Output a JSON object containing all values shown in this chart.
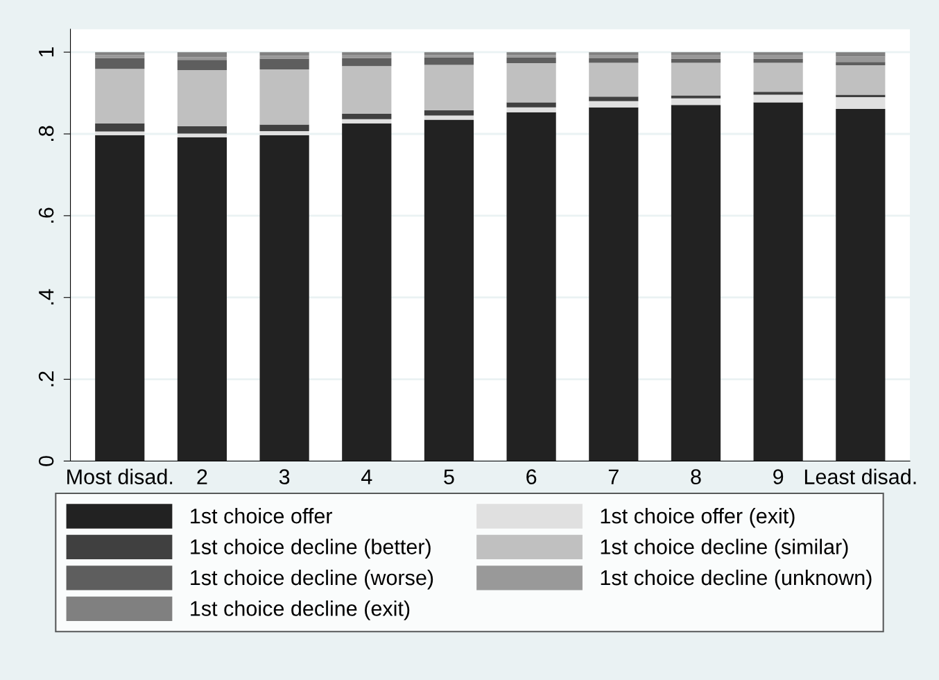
{
  "chart_data": {
    "type": "bar",
    "stacked": true,
    "categories": [
      "Most disad.",
      "2",
      "3",
      "4",
      "5",
      "6",
      "7",
      "8",
      "9",
      "Least disad."
    ],
    "series": [
      {
        "name": "1st choice offer",
        "color": "#222222",
        "values": [
          0.797,
          0.792,
          0.797,
          0.826,
          0.835,
          0.853,
          0.865,
          0.871,
          0.877,
          0.861
        ]
      },
      {
        "name": "1st choice offer (exit)",
        "color": "#e0e0e0",
        "values": [
          0.009,
          0.009,
          0.01,
          0.01,
          0.01,
          0.012,
          0.015,
          0.016,
          0.019,
          0.029
        ]
      },
      {
        "name": "1st choice decline (better)",
        "color": "#404040",
        "values": [
          0.02,
          0.018,
          0.016,
          0.013,
          0.013,
          0.012,
          0.011,
          0.007,
          0.007,
          0.006
        ]
      },
      {
        "name": "1st choice decline (similar)",
        "color": "#c0c0c0",
        "values": [
          0.133,
          0.137,
          0.135,
          0.117,
          0.111,
          0.096,
          0.083,
          0.08,
          0.071,
          0.072
        ]
      },
      {
        "name": "1st choice decline (worse)",
        "color": "#5e5e5e",
        "values": [
          0.027,
          0.025,
          0.026,
          0.02,
          0.018,
          0.014,
          0.011,
          0.01,
          0.01,
          0.008
        ]
      },
      {
        "name": "1st choice decline (unknown)",
        "color": "#999999",
        "values": [
          0.007,
          0.007,
          0.007,
          0.006,
          0.006,
          0.006,
          0.007,
          0.008,
          0.008,
          0.013
        ]
      },
      {
        "name": "1st choice decline (exit)",
        "color": "#808080",
        "values": [
          0.007,
          0.012,
          0.009,
          0.008,
          0.007,
          0.007,
          0.008,
          0.008,
          0.008,
          0.011
        ]
      }
    ],
    "ylim": [
      0,
      1.056
    ],
    "yticks": [
      0,
      {
        "value": 0.2,
        "label": ".2"
      },
      {
        "value": 0.4,
        "label": ".4"
      },
      {
        "value": 0.6,
        "label": ".6"
      },
      {
        "value": 0.8,
        "label": ".8"
      },
      1
    ],
    "grid": "y",
    "legend": "bottom"
  }
}
